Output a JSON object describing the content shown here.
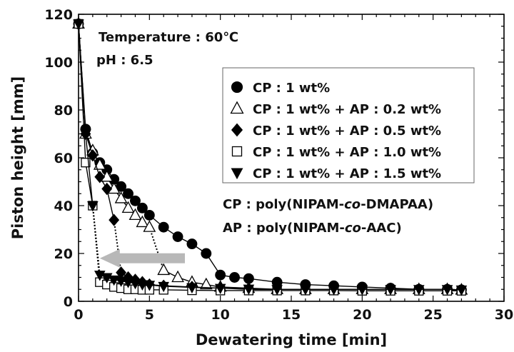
{
  "chart_data": {
    "type": "line",
    "title": "",
    "xlabel": "Dewatering time  [min]",
    "ylabel": "Piston height  [mm]",
    "xlim": [
      0,
      30
    ],
    "ylim": [
      0,
      120
    ],
    "x_ticks": [
      0,
      5,
      10,
      15,
      20,
      25,
      30
    ],
    "y_ticks": [
      0,
      20,
      40,
      60,
      80,
      100,
      120
    ],
    "grid": false,
    "legend_position": "upper-right",
    "annotations": {
      "temperature": "Temperature : 60℃",
      "ph": "pH : 6.5",
      "cp_def": "CP : poly(NIPAM-co-DMAPAA)",
      "ap_def": "AP : poly(NIPAM-co-AAC)"
    },
    "arrow": {
      "from": [
        7.5,
        18
      ],
      "to": [
        1.5,
        18
      ],
      "color": "#b8b8b8"
    },
    "series": [
      {
        "name": "CP : 1 wt%",
        "marker": "circle-filled",
        "color": "#000000",
        "x": [
          0,
          0.5,
          1,
          1.5,
          2,
          2.5,
          3,
          3.5,
          4,
          4.5,
          5,
          6,
          7,
          8,
          9,
          10,
          11,
          12,
          14,
          16,
          18,
          20,
          22,
          24,
          26,
          27
        ],
        "y": [
          116,
          72,
          62,
          58,
          55,
          51,
          48,
          45,
          42,
          39,
          36,
          31,
          27,
          24,
          20,
          11,
          10,
          9.5,
          8,
          7,
          6.5,
          6,
          5.5,
          5,
          5,
          4.8
        ],
        "dotted_segments": []
      },
      {
        "name": "CP : 1 wt% + AP : 0.2 wt%",
        "marker": "triangle-up-open",
        "color": "#000000",
        "x": [
          0,
          0.5,
          1,
          1.5,
          2,
          2.5,
          3,
          3.5,
          4,
          4.5,
          5,
          6,
          7,
          8,
          9,
          10,
          12,
          14,
          16,
          18,
          20,
          22,
          24,
          26,
          27
        ],
        "y": [
          116,
          70,
          63,
          57,
          52,
          47,
          43,
          39,
          36,
          33,
          31,
          13,
          10,
          8,
          7,
          6,
          5.5,
          5,
          5,
          5,
          5,
          5,
          5,
          5,
          4.8
        ],
        "dotted_segments": [
          [
            10,
            11
          ]
        ]
      },
      {
        "name": "CP : 1 wt% + AP : 0.5 wt%",
        "marker": "diamond-filled",
        "color": "#000000",
        "x": [
          0,
          0.5,
          1,
          1.5,
          2,
          2.5,
          3,
          3.5,
          4,
          4.5,
          5,
          6,
          8,
          10,
          12,
          14,
          16,
          18,
          20,
          22,
          24,
          26,
          27
        ],
        "y": [
          116,
          70,
          61,
          52,
          47,
          34,
          12,
          10,
          9,
          8,
          7,
          6.5,
          6,
          5.5,
          5,
          5,
          5,
          5,
          5,
          5,
          5,
          5,
          4.8
        ],
        "dotted_segments": [
          [
            5,
            6
          ]
        ]
      },
      {
        "name": "CP : 1 wt% + AP : 1.0 wt%",
        "marker": "square-open",
        "color": "#000000",
        "x": [
          0,
          0.5,
          1,
          1.5,
          2,
          2.5,
          3,
          3.5,
          4,
          4.5,
          5,
          6,
          8,
          10,
          12,
          14,
          16,
          18,
          20,
          22,
          24,
          26,
          27
        ],
        "y": [
          116,
          58,
          40,
          8,
          7,
          6,
          5.5,
          5,
          5,
          4.8,
          4.8,
          4.8,
          4.6,
          4.5,
          4.5,
          4.5,
          4.5,
          4.5,
          4.4,
          4.4,
          4.4,
          4.4,
          4.4
        ],
        "dotted_segments": [
          [
            2,
            3
          ]
        ]
      },
      {
        "name": "CP : 1 wt% + AP : 1.5 wt%",
        "marker": "triangle-down-filled",
        "color": "#000000",
        "x": [
          0,
          0.5,
          1,
          1.5,
          2,
          2.5,
          3,
          3.5,
          4,
          4.5,
          5,
          6,
          8,
          10,
          12,
          14,
          16,
          18,
          20,
          22,
          24,
          26,
          27
        ],
        "y": [
          116,
          70,
          40,
          11,
          10,
          9,
          8.5,
          8,
          7.5,
          7,
          6.8,
          6.3,
          5.8,
          5.5,
          5.2,
          5,
          5,
          5,
          5,
          5,
          5,
          5,
          4.8
        ],
        "dotted_segments": [
          [
            2,
            3
          ]
        ]
      }
    ]
  }
}
